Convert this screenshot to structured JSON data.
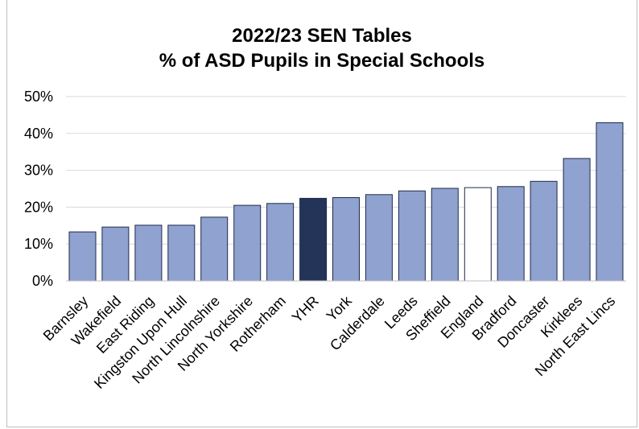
{
  "chart_data": {
    "type": "bar",
    "title": "2022/23 SEN Tables",
    "subtitle": "% of ASD Pupils in Special Schools",
    "categories": [
      "Barnsley",
      "Wakefield",
      "East Riding",
      "Kingston Upon Hull",
      "North Lincolnshire",
      "North Yorkshire",
      "Rotherham",
      "YHR",
      "York",
      "Calderdale",
      "Leeds",
      "Sheffield",
      "England",
      "Bradford",
      "Doncaster",
      "Kirklees",
      "North East Lincs"
    ],
    "values": [
      13.3,
      14.6,
      15.1,
      15.1,
      17.3,
      20.5,
      21.0,
      22.4,
      22.6,
      23.4,
      24.4,
      25.1,
      25.3,
      25.6,
      27.0,
      33.2,
      42.9
    ],
    "ylim": [
      0,
      50
    ],
    "yticks": [
      0,
      10,
      20,
      30,
      40,
      50
    ],
    "ytick_labels": [
      "0%",
      "10%",
      "20%",
      "30%",
      "40%",
      "50%"
    ],
    "grid": true,
    "colors": {
      "default": "#8fa2d0",
      "YHR": "#243459",
      "England": "#ffffff",
      "edge": "#1f2a4a",
      "grid": "#d9d9d9"
    }
  }
}
